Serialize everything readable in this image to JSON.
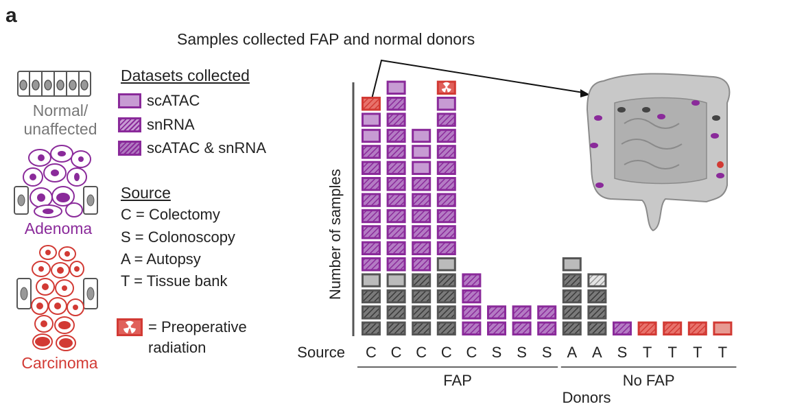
{
  "panel_label": "a",
  "figure_title": "Samples collected FAP and normal donors",
  "tissue_types": {
    "normal": "Normal/\nunaffected",
    "normal_line1": "Normal/",
    "normal_line2": "unaffected",
    "adenoma": "Adenoma",
    "carcinoma": "Carcinoma"
  },
  "legend": {
    "datasets_title": "Datasets collected",
    "datasets": [
      "scATAC",
      "snRNA",
      "scATAC & snRNA"
    ],
    "source_title": "Source",
    "sources": [
      "C = Colectomy",
      "S = Colonoscopy",
      "A = Autopsy",
      "T = Tissue bank"
    ],
    "radiation_line1": "= Preoperative",
    "radiation_line2": "radiation"
  },
  "colors": {
    "normal": "#555555",
    "normal_light": "#bbbbbb",
    "adenoma": "#8a2a9a",
    "adenoma_fill": "#c79bd3",
    "carcinoma": "#d23a34",
    "carcinoma_fill": "#e79a92"
  },
  "chart_data": {
    "type": "bar",
    "subtype": "stacked-tiles",
    "ylabel": "Number of samples",
    "xlabel": "Donors",
    "source_row_label": "Source",
    "groups": [
      {
        "name": "FAP",
        "donor_count": 8
      },
      {
        "name": "No FAP",
        "donor_count": 7
      }
    ],
    "donors": [
      {
        "source": "C",
        "group": "FAP",
        "tiles": [
          "N-both",
          "N-both",
          "N-both",
          "N-atac",
          "A-both",
          "A-both",
          "A-both",
          "A-both",
          "A-both",
          "A-both",
          "A-both",
          "A-both",
          "A-atac",
          "A-atac",
          "C-both"
        ]
      },
      {
        "source": "C",
        "group": "FAP",
        "tiles": [
          "N-both",
          "N-both",
          "N-both",
          "N-atac",
          "A-both",
          "A-both",
          "A-both",
          "A-both",
          "A-both",
          "A-both",
          "A-both",
          "A-both",
          "A-both",
          "A-both",
          "A-both",
          "A-atac"
        ]
      },
      {
        "source": "C",
        "group": "FAP",
        "tiles": [
          "N-both",
          "N-both",
          "N-both",
          "N-both",
          "A-both",
          "A-both",
          "A-both",
          "A-both",
          "A-both",
          "A-both",
          "A-atac",
          "A-atac",
          "A-atac"
        ]
      },
      {
        "source": "C",
        "group": "FAP",
        "tiles": [
          "N-both",
          "N-both",
          "N-both",
          "N-both",
          "N-atac",
          "A-both",
          "A-both",
          "A-both",
          "A-both",
          "A-both",
          "A-both",
          "A-both",
          "A-both",
          "A-both",
          "A-atac",
          "C-radiation"
        ]
      },
      {
        "source": "C",
        "group": "FAP",
        "tiles": [
          "A-both",
          "A-both",
          "A-both",
          "A-both"
        ]
      },
      {
        "source": "S",
        "group": "FAP",
        "tiles": [
          "A-both",
          "A-both"
        ]
      },
      {
        "source": "S",
        "group": "FAP",
        "tiles": [
          "A-both",
          "A-both"
        ]
      },
      {
        "source": "S",
        "group": "FAP",
        "tiles": [
          "A-both",
          "A-both"
        ]
      },
      {
        "source": "A",
        "group": "No FAP",
        "tiles": [
          "N-both",
          "N-both",
          "N-both",
          "N-both",
          "N-atac"
        ]
      },
      {
        "source": "A",
        "group": "No FAP",
        "tiles": [
          "N-both",
          "N-both",
          "N-both",
          "N-rna"
        ]
      },
      {
        "source": "S",
        "group": "No FAP",
        "tiles": [
          "A-both"
        ]
      },
      {
        "source": "T",
        "group": "No FAP",
        "tiles": [
          "C-both"
        ]
      },
      {
        "source": "T",
        "group": "No FAP",
        "tiles": [
          "C-both"
        ]
      },
      {
        "source": "T",
        "group": "No FAP",
        "tiles": [
          "C-both"
        ]
      },
      {
        "source": "T",
        "group": "No FAP",
        "tiles": [
          "C-atac"
        ]
      }
    ],
    "tile_key": {
      "N": "Normal/unaffected",
      "A": "Adenoma",
      "C": "Carcinoma",
      "atac": "scATAC",
      "rna": "snRNA",
      "both": "scATAC & snRNA",
      "radiation": "Preoperative radiation"
    }
  }
}
